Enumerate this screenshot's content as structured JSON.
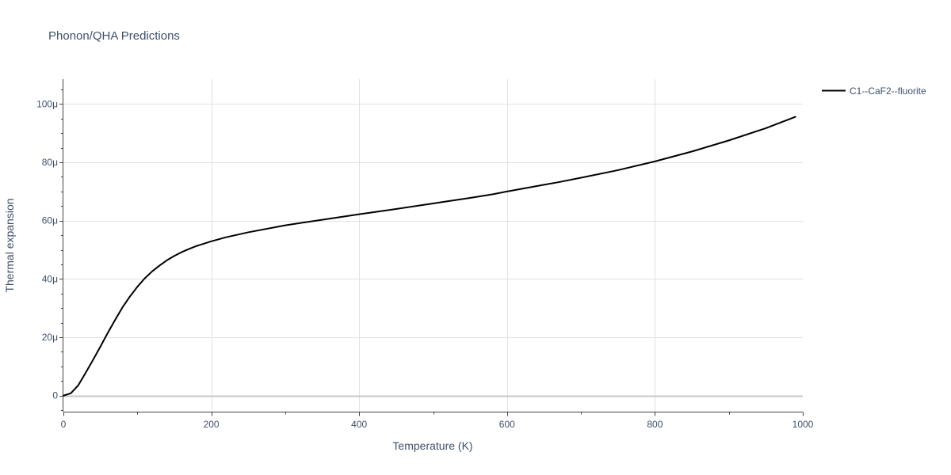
{
  "chart_data": {
    "type": "line",
    "title": "Phonon/QHA Predictions",
    "xlabel": "Temperature (K)",
    "ylabel": "Thermal expansion",
    "xlim": [
      0,
      1000
    ],
    "ylim": [
      -5.5,
      108.5
    ],
    "x_ticks": [
      0,
      200,
      400,
      600,
      800,
      1000
    ],
    "x_tick_labels": [
      "0",
      "200",
      "400",
      "600",
      "800",
      "1000"
    ],
    "y_ticks": [
      0,
      20,
      40,
      60,
      80,
      100
    ],
    "y_tick_labels": [
      "0",
      "20μ",
      "40μ",
      "60μ",
      "80μ",
      "100μ"
    ],
    "y_unit_note": "values in micro (1e-6) units, displayed with μ suffix",
    "grid": true,
    "legend_position": "top-right",
    "series": [
      {
        "name": "C1--CaF2--fluorite",
        "color": "#000000",
        "x": [
          0,
          10,
          20,
          30,
          40,
          50,
          60,
          70,
          80,
          90,
          100,
          110,
          120,
          130,
          140,
          150,
          160,
          170,
          180,
          190,
          200,
          220,
          250,
          300,
          350,
          400,
          450,
          500,
          550,
          580,
          600,
          650,
          670,
          700,
          750,
          800,
          850,
          900,
          950,
          990
        ],
        "y": [
          0,
          0.8,
          3.5,
          7.8,
          12.2,
          16.8,
          21.5,
          26.0,
          30.3,
          34.0,
          37.3,
          40.2,
          42.6,
          44.6,
          46.4,
          47.9,
          49.2,
          50.3,
          51.3,
          52.1,
          52.9,
          54.3,
          56.0,
          58.4,
          60.3,
          62.2,
          64.0,
          65.9,
          67.8,
          69.0,
          70.0,
          72.3,
          73.2,
          74.7,
          77.3,
          80.3,
          83.7,
          87.5,
          91.7,
          95.6
        ]
      }
    ]
  }
}
